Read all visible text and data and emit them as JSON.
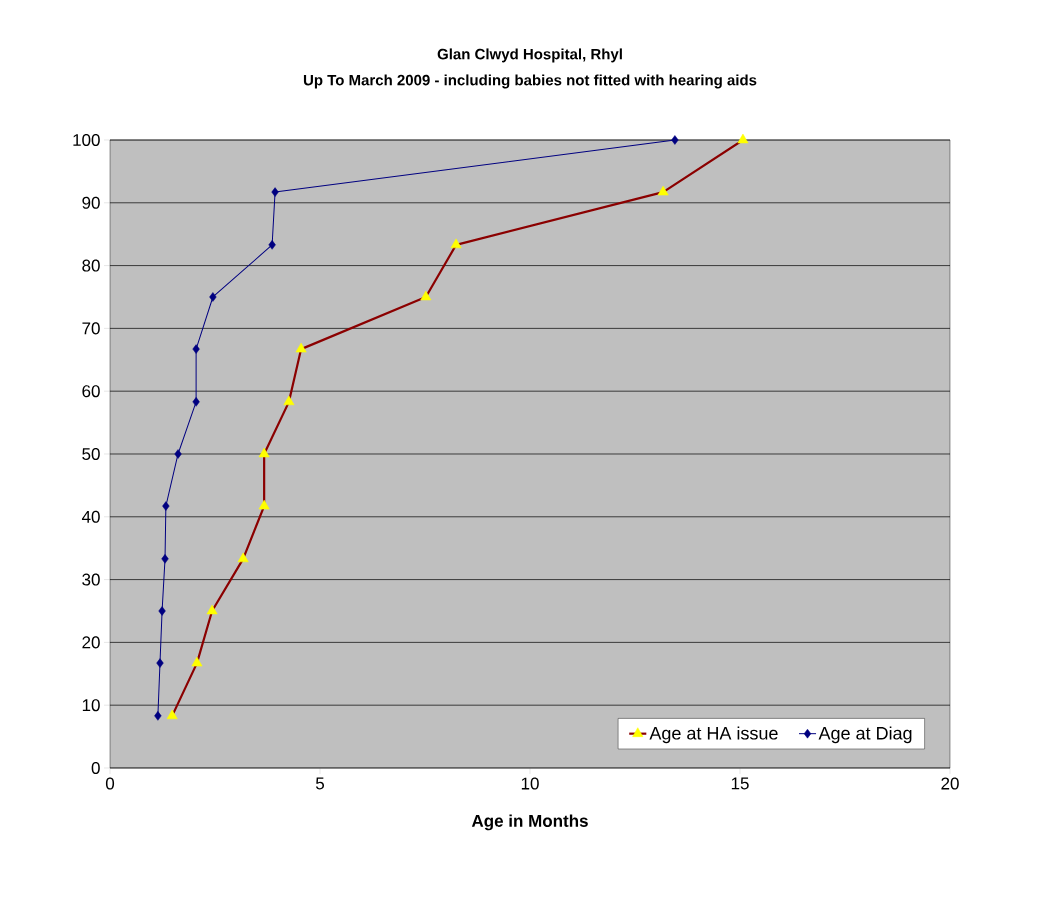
{
  "chart_data": {
    "type": "line",
    "title": "Glan Clwyd Hospital, Rhyl",
    "subtitle": "Up To March 2009 - including babies not fitted with hearing aids",
    "xlabel": "Age in Months",
    "xlim": [
      0,
      20
    ],
    "xticks": [
      0,
      5,
      10,
      15,
      20
    ],
    "ylim": [
      0,
      100
    ],
    "yticks": [
      0,
      10,
      20,
      30,
      40,
      50,
      60,
      70,
      80,
      90,
      100
    ],
    "grid": "y",
    "legend": "bottom right",
    "series": [
      {
        "name": "Age at HA issue",
        "color": "#8b0000",
        "marker": "triangle",
        "x": [
          1.48,
          2.07,
          2.43,
          3.17,
          3.67,
          3.67,
          4.26,
          4.55,
          7.52,
          8.24,
          13.17,
          15.07
        ],
        "values": [
          8.3,
          16.7,
          25,
          33.3,
          41.7,
          50,
          58.3,
          66.7,
          75,
          83.3,
          91.7,
          100
        ]
      },
      {
        "name": "Age at Diag",
        "color": "#000080",
        "marker": "diamond",
        "x": [
          1.14,
          1.19,
          1.24,
          1.31,
          1.33,
          1.62,
          2.05,
          2.05,
          2.45,
          3.86,
          3.93,
          13.45
        ],
        "values": [
          8.3,
          16.7,
          25,
          33.3,
          41.7,
          50,
          58.3,
          66.7,
          75,
          83.3,
          91.7,
          100
        ]
      }
    ]
  }
}
